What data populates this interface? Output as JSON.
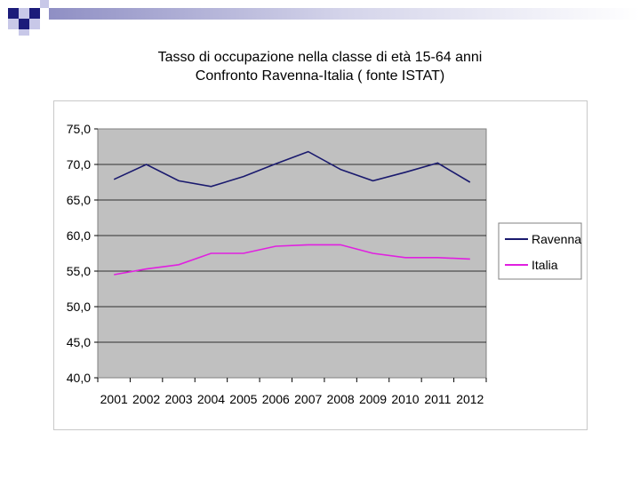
{
  "header": {
    "title_line1": "Tasso di occupazione nella classe di età 15-64 anni",
    "title_line2": "Confronto Ravenna-Italia ( fonte ISTAT)"
  },
  "colors": {
    "ravenna": "#1a1a6e",
    "italia": "#e020e0",
    "plot_bg": "#c0c0c0",
    "deco_dark": "#1c1c7a",
    "deco_light": "#c8c8e8"
  },
  "chart_data": {
    "type": "line",
    "title": "",
    "xlabel": "",
    "ylabel": "",
    "categories": [
      "2001",
      "2002",
      "2003",
      "2004",
      "2005",
      "2006",
      "2007",
      "2008",
      "2009",
      "2010",
      "2011",
      "2012"
    ],
    "ylim": [
      40.0,
      75.0
    ],
    "yticks": [
      "40,0",
      "45,0",
      "50,0",
      "55,0",
      "60,0",
      "65,0",
      "70,0",
      "75,0"
    ],
    "grid": true,
    "legend_position": "right",
    "series": [
      {
        "name": "Ravenna",
        "values": [
          67.9,
          70.0,
          67.7,
          66.9,
          68.3,
          70.1,
          71.8,
          69.3,
          67.7,
          68.9,
          70.2,
          67.5
        ]
      },
      {
        "name": "Italia",
        "values": [
          54.5,
          55.3,
          55.9,
          57.5,
          57.5,
          58.5,
          58.7,
          58.7,
          57.5,
          56.9,
          56.9,
          56.7
        ]
      }
    ]
  }
}
